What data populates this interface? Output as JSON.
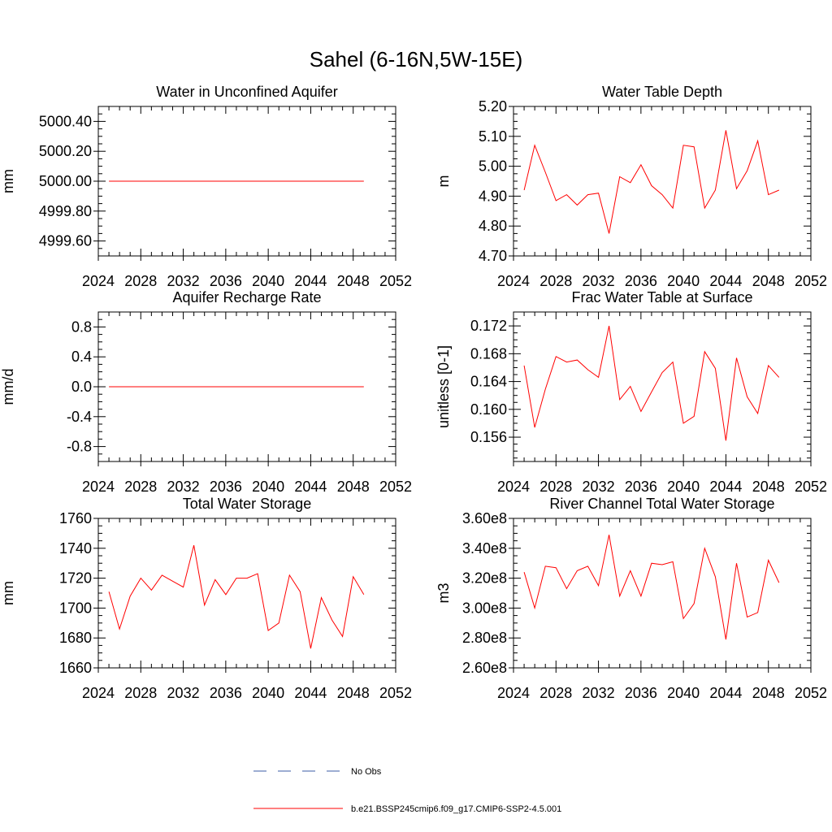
{
  "figure": {
    "title": "Sahel (6-16N,5W-15E)",
    "legend": [
      {
        "label": "No Obs",
        "color": "#3b5ba5",
        "dash": "dashed"
      },
      {
        "label": "b.e21.BSSP245cmip6.f09_g17.CMIP6-SSP2-4.5.001",
        "color": "#ff0000",
        "dash": "solid"
      }
    ],
    "series_color": "#ff0000",
    "obs_color": "#3b5ba5"
  },
  "chart_data": [
    {
      "type": "line",
      "title": "Water in Unconfined Aquifer",
      "xlabel": "",
      "ylabel": "mm",
      "xlim": [
        2024,
        2052
      ],
      "xticks": [
        2024,
        2028,
        2032,
        2036,
        2040,
        2044,
        2048,
        2052
      ],
      "xtick_labels": [
        "2024",
        "2028",
        "2032",
        "2036",
        "2040",
        "2044",
        "2048",
        "2052"
      ],
      "ylim": [
        4999.5,
        5000.5
      ],
      "yticks": [
        4999.6,
        4999.8,
        5000.0,
        5000.2,
        5000.4
      ],
      "ytick_labels": [
        "4999.60",
        "4999.80",
        "5000.00",
        "5000.20",
        "5000.40"
      ],
      "x": [
        2025,
        2026,
        2027,
        2028,
        2029,
        2030,
        2031,
        2032,
        2033,
        2034,
        2035,
        2036,
        2037,
        2038,
        2039,
        2040,
        2041,
        2042,
        2043,
        2044,
        2045,
        2046,
        2047,
        2048,
        2049
      ],
      "series": [
        {
          "values": [
            5000.0,
            5000.0,
            5000.0,
            5000.0,
            5000.0,
            5000.0,
            5000.0,
            5000.0,
            5000.0,
            5000.0,
            5000.0,
            5000.0,
            5000.0,
            5000.0,
            5000.0,
            5000.0,
            5000.0,
            5000.0,
            5000.0,
            5000.0,
            5000.0,
            5000.0,
            5000.0,
            5000.0,
            5000.0
          ]
        }
      ]
    },
    {
      "type": "line",
      "title": "Water Table Depth",
      "xlabel": "",
      "ylabel": "m",
      "xlim": [
        2024,
        2052
      ],
      "xticks": [
        2024,
        2028,
        2032,
        2036,
        2040,
        2044,
        2048,
        2052
      ],
      "xtick_labels": [
        "2024",
        "2028",
        "2032",
        "2036",
        "2040",
        "2044",
        "2048",
        "2052"
      ],
      "ylim": [
        4.7,
        5.2
      ],
      "yticks": [
        4.7,
        4.8,
        4.9,
        5.0,
        5.1,
        5.2
      ],
      "ytick_labels": [
        "4.70",
        "4.80",
        "4.90",
        "5.00",
        "5.10",
        "5.20"
      ],
      "x": [
        2025,
        2026,
        2027,
        2028,
        2029,
        2030,
        2031,
        2032,
        2033,
        2034,
        2035,
        2036,
        2037,
        2038,
        2039,
        2040,
        2041,
        2042,
        2043,
        2044,
        2045,
        2046,
        2047,
        2048,
        2049
      ],
      "series": [
        {
          "values": [
            4.92,
            5.07,
            4.98,
            4.885,
            4.905,
            4.87,
            4.905,
            4.91,
            4.775,
            4.965,
            4.945,
            5.005,
            4.935,
            4.905,
            4.86,
            5.07,
            5.065,
            4.86,
            4.92,
            5.12,
            4.925,
            4.985,
            5.085,
            4.905,
            4.92
          ]
        }
      ]
    },
    {
      "type": "line",
      "title": "Aquifer Recharge Rate",
      "xlabel": "",
      "ylabel": "mm/d",
      "xlim": [
        2024,
        2052
      ],
      "xticks": [
        2024,
        2028,
        2032,
        2036,
        2040,
        2044,
        2048,
        2052
      ],
      "xtick_labels": [
        "2024",
        "2028",
        "2032",
        "2036",
        "2040",
        "2044",
        "2048",
        "2052"
      ],
      "ylim": [
        -1.0,
        1.0
      ],
      "yticks": [
        -0.8,
        -0.4,
        0.0,
        0.4,
        0.8
      ],
      "ytick_labels": [
        "-0.8",
        "-0.4",
        "0.0",
        "0.4",
        "0.8"
      ],
      "x": [
        2025,
        2026,
        2027,
        2028,
        2029,
        2030,
        2031,
        2032,
        2033,
        2034,
        2035,
        2036,
        2037,
        2038,
        2039,
        2040,
        2041,
        2042,
        2043,
        2044,
        2045,
        2046,
        2047,
        2048,
        2049
      ],
      "series": [
        {
          "values": [
            0,
            0,
            0,
            0,
            0,
            0,
            0,
            0,
            0,
            0,
            0,
            0,
            0,
            0,
            0,
            0,
            0,
            0,
            0,
            0,
            0,
            0,
            0,
            0,
            0
          ]
        }
      ]
    },
    {
      "type": "line",
      "title": "Frac Water Table at Surface",
      "xlabel": "",
      "ylabel": "unitless [0-1]",
      "xlim": [
        2024,
        2052
      ],
      "xticks": [
        2024,
        2028,
        2032,
        2036,
        2040,
        2044,
        2048,
        2052
      ],
      "xtick_labels": [
        "2024",
        "2028",
        "2032",
        "2036",
        "2040",
        "2044",
        "2048",
        "2052"
      ],
      "ylim": [
        0.1525,
        0.174
      ],
      "yticks": [
        0.156,
        0.16,
        0.164,
        0.168,
        0.172
      ],
      "ytick_labels": [
        "0.156",
        "0.160",
        "0.164",
        "0.168",
        "0.172"
      ],
      "x": [
        2025,
        2026,
        2027,
        2028,
        2029,
        2030,
        2031,
        2032,
        2033,
        2034,
        2035,
        2036,
        2037,
        2038,
        2039,
        2040,
        2041,
        2042,
        2043,
        2044,
        2045,
        2046,
        2047,
        2048,
        2049
      ],
      "series": [
        {
          "values": [
            0.1663,
            0.1574,
            0.1629,
            0.1676,
            0.1668,
            0.1671,
            0.1657,
            0.1646,
            0.172,
            0.1614,
            0.1633,
            0.1597,
            0.1625,
            0.1653,
            0.1668,
            0.158,
            0.159,
            0.1683,
            0.1659,
            0.1555,
            0.1674,
            0.1618,
            0.1594,
            0.1663,
            0.1646
          ]
        }
      ]
    },
    {
      "type": "line",
      "title": "Total Water Storage",
      "xlabel": "",
      "ylabel": "mm",
      "xlim": [
        2024,
        2052
      ],
      "xticks": [
        2024,
        2028,
        2032,
        2036,
        2040,
        2044,
        2048,
        2052
      ],
      "xtick_labels": [
        "2024",
        "2028",
        "2032",
        "2036",
        "2040",
        "2044",
        "2048",
        "2052"
      ],
      "ylim": [
        1660,
        1760
      ],
      "yticks": [
        1660,
        1680,
        1700,
        1720,
        1740,
        1760
      ],
      "ytick_labels": [
        "1660",
        "1680",
        "1700",
        "1720",
        "1740",
        "1760"
      ],
      "x": [
        2025,
        2026,
        2027,
        2028,
        2029,
        2030,
        2031,
        2032,
        2033,
        2034,
        2035,
        2036,
        2037,
        2038,
        2039,
        2040,
        2041,
        2042,
        2043,
        2044,
        2045,
        2046,
        2047,
        2048,
        2049
      ],
      "series": [
        {
          "values": [
            1711,
            1686,
            1708,
            1720,
            1712,
            1722,
            1718,
            1714,
            1742,
            1702,
            1719,
            1709,
            1720,
            1720,
            1723,
            1685,
            1690,
            1722,
            1711,
            1673,
            1707,
            1692,
            1681,
            1721,
            1709
          ]
        }
      ]
    },
    {
      "type": "line",
      "title": "River Channel Total Water Storage",
      "xlabel": "",
      "ylabel": "m3",
      "xlim": [
        2024,
        2052
      ],
      "xticks": [
        2024,
        2028,
        2032,
        2036,
        2040,
        2044,
        2048,
        2052
      ],
      "xtick_labels": [
        "2024",
        "2028",
        "2032",
        "2036",
        "2040",
        "2044",
        "2048",
        "2052"
      ],
      "ylim": [
        260000000.0,
        360000000.0
      ],
      "yticks": [
        260000000.0,
        280000000.0,
        300000000.0,
        320000000.0,
        340000000.0,
        360000000.0
      ],
      "ytick_labels": [
        "2.60e8",
        "2.80e8",
        "3.00e8",
        "3.20e8",
        "3.40e8",
        "3.60e8"
      ],
      "x": [
        2025,
        2026,
        2027,
        2028,
        2029,
        2030,
        2031,
        2032,
        2033,
        2034,
        2035,
        2036,
        2037,
        2038,
        2039,
        2040,
        2041,
        2042,
        2043,
        2044,
        2045,
        2046,
        2047,
        2048,
        2049
      ],
      "series": [
        {
          "values": [
            324000000.0,
            300000000.0,
            328000000.0,
            327000000.0,
            313000000.0,
            325000000.0,
            328000000.0,
            315000000.0,
            349000000.0,
            308000000.0,
            325000000.0,
            308000000.0,
            330000000.0,
            329000000.0,
            331000000.0,
            293000000.0,
            303000000.0,
            340000000.0,
            321000000.0,
            279000000.0,
            330000000.0,
            294000000.0,
            297000000.0,
            332000000.0,
            317000000.0
          ]
        }
      ]
    }
  ]
}
